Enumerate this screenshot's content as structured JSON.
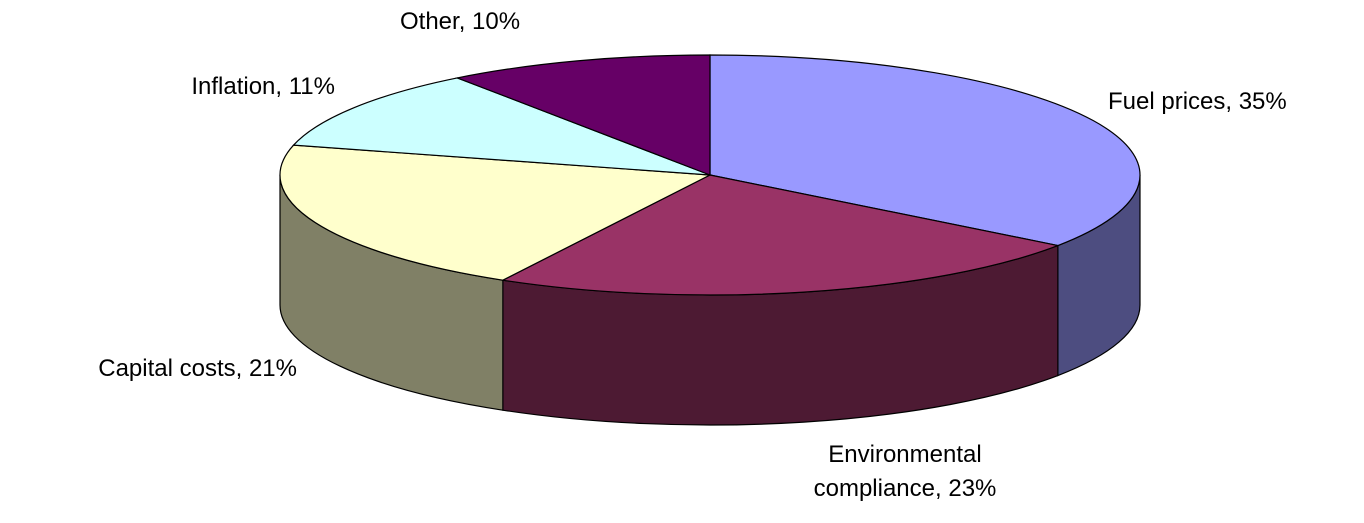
{
  "chart_data": {
    "type": "pie3d",
    "values": [
      35,
      23,
      21,
      11,
      10
    ],
    "value_labels": [
      "Fuel prices, 35%",
      "Environmental compliance, 23%",
      "Capital costs, 21%",
      "Inflation, 11%",
      "Other, 10%"
    ],
    "colors": [
      "#9999ff",
      "#993366",
      "#ffffcc",
      "#ccffff",
      "#660066"
    ]
  }
}
